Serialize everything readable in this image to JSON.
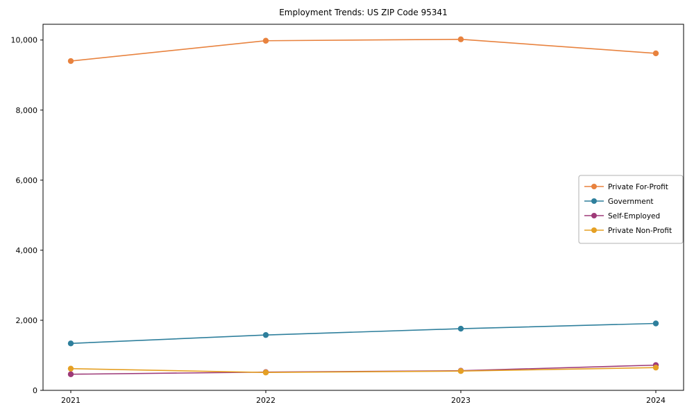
{
  "title": "Employment Trends: US ZIP Code 95341",
  "chart_data": {
    "type": "line",
    "title": "Employment Trends: US ZIP Code 95341",
    "x": [
      "2021",
      "2022",
      "2023",
      "2024"
    ],
    "series": [
      {
        "name": "Private For-Profit",
        "color": "#E8823E",
        "values": [
          9400,
          9980,
          10020,
          9620
        ]
      },
      {
        "name": "Government",
        "color": "#2E7F9C",
        "values": [
          1340,
          1580,
          1760,
          1910
        ]
      },
      {
        "name": "Self-Employed",
        "color": "#9E3A78",
        "values": [
          460,
          520,
          560,
          720
        ]
      },
      {
        "name": "Private Non-Profit",
        "color": "#E5A024",
        "values": [
          620,
          510,
          550,
          650
        ]
      }
    ],
    "xlabel": "",
    "ylabel": "",
    "ylim": [
      0,
      10450
    ],
    "yticks": [
      0,
      2000,
      4000,
      6000,
      8000,
      10000
    ],
    "ytick_labels": [
      "0",
      "2,000",
      "4,000",
      "6,000",
      "8,000",
      "10,000"
    ],
    "legend_position": "center right",
    "grid": false
  }
}
